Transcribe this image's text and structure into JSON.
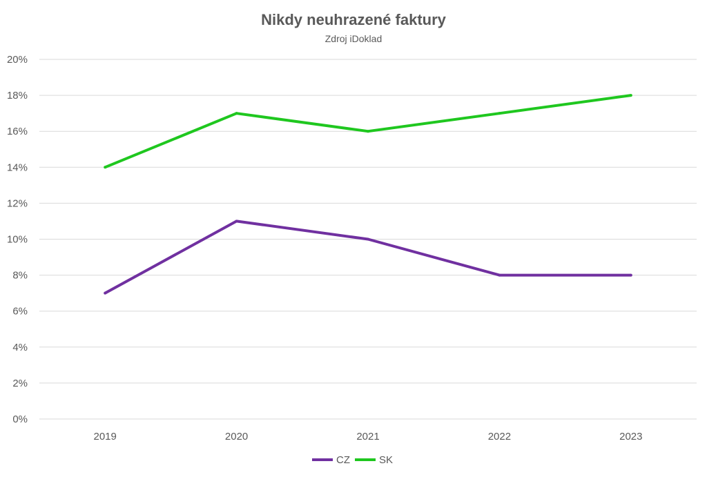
{
  "chart_data": {
    "type": "line",
    "title": "Nikdy neuhrazené faktury",
    "subtitle": "Zdroj iDoklad",
    "xlabel": "",
    "ylabel": "",
    "categories": [
      "2019",
      "2020",
      "2021",
      "2022",
      "2023"
    ],
    "ylim": [
      0,
      20
    ],
    "yticks": [
      0,
      2,
      4,
      6,
      8,
      10,
      12,
      14,
      16,
      18,
      20
    ],
    "ytick_labels": [
      "0%",
      "2%",
      "4%",
      "6%",
      "8%",
      "10%",
      "12%",
      "14%",
      "16%",
      "18%",
      "20%"
    ],
    "grid": true,
    "legend_position": "bottom",
    "series": [
      {
        "name": "CZ",
        "color": "#7030a0",
        "values": [
          7,
          11,
          10,
          8,
          8
        ]
      },
      {
        "name": "SK",
        "color": "#1fc71f",
        "values": [
          14,
          17,
          16,
          17,
          18
        ]
      }
    ]
  }
}
